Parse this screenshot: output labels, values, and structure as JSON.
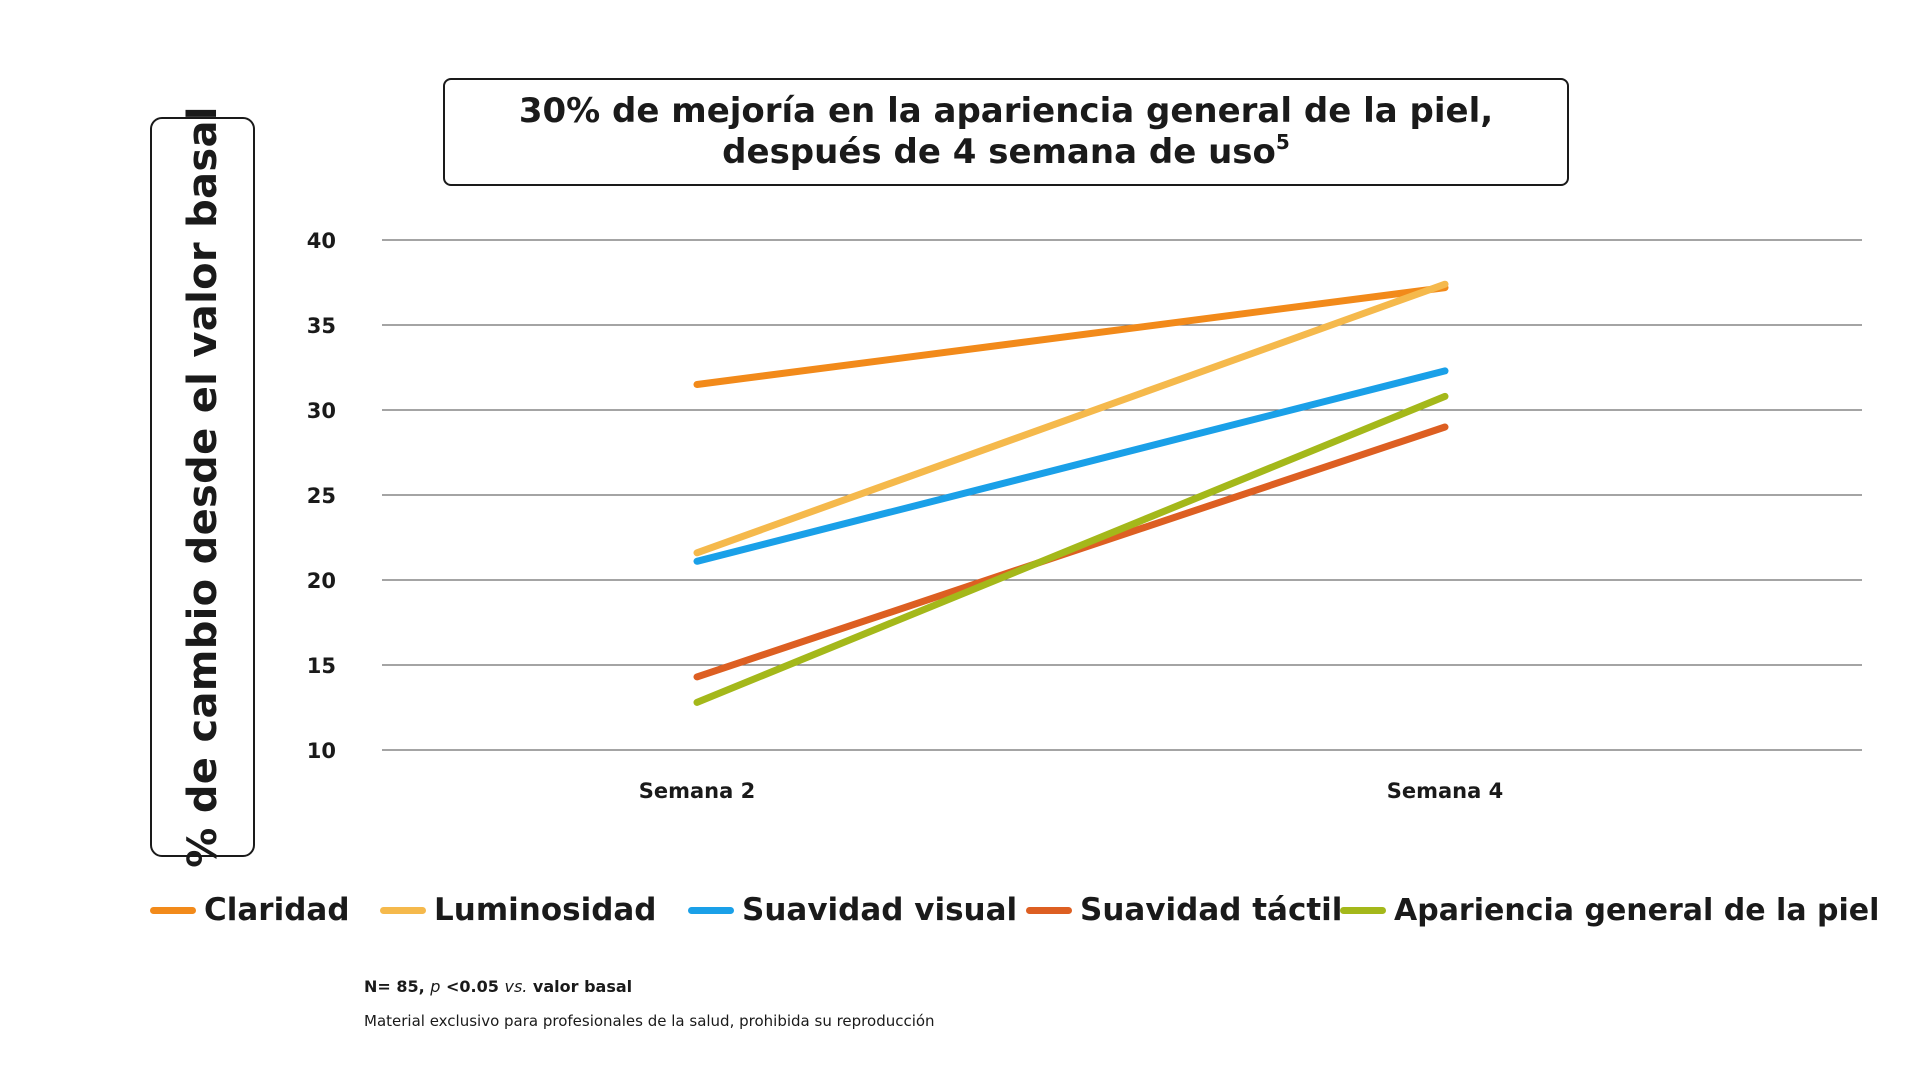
{
  "title": {
    "line1": "30% de mejoría en la apariencia general de la piel,",
    "line2": "después de 4 semana de uso",
    "superscript": "5"
  },
  "chart_data": {
    "type": "line",
    "title": "30% de mejoría en la apariencia general de la piel, después de 4 semana de uso5",
    "xlabel": "",
    "ylabel": "% de cambio desde el valor basal",
    "categories": [
      "Semana 2",
      "Semana 4"
    ],
    "ylim": [
      10,
      40
    ],
    "yticks": [
      "10",
      "15",
      "20",
      "25",
      "30",
      "35",
      "40"
    ],
    "grid": true,
    "legend_position": "bottom",
    "series": [
      {
        "name": "Claridad",
        "color": "#f28a1a",
        "values": [
          31.5,
          37.2
        ]
      },
      {
        "name": "Luminosidad",
        "color": "#f5b94c",
        "values": [
          21.6,
          37.4
        ]
      },
      {
        "name": "Suavidad visual",
        "color": "#1aa0e8",
        "values": [
          21.1,
          32.3
        ]
      },
      {
        "name": "Suavidad táctil",
        "color": "#dd5f22",
        "values": [
          14.3,
          29.0
        ]
      },
      {
        "name": "Apariencia general de la piel",
        "color": "#a4b81a",
        "values": [
          12.8,
          30.8
        ]
      }
    ]
  },
  "footnotes": {
    "stats_prefix": "N= 85, ",
    "stats_p": "p",
    "stats_mid": " <0.05 ",
    "stats_vs": "vs.",
    "stats_suffix": " valor basal",
    "disclaimer": "Material exclusivo para profesionales de la salud, prohibida su reproducción"
  }
}
